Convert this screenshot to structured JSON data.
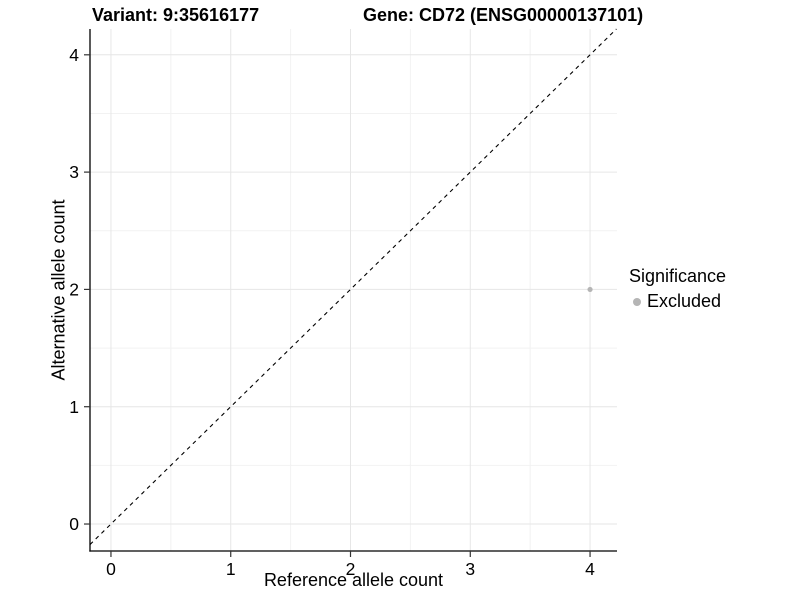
{
  "header": {
    "variant_title": "Variant: 9:35616177",
    "gene_title": "Gene: CD72 (ENSG00000137101)"
  },
  "legend": {
    "title": "Significance",
    "items": [
      {
        "label": "Excluded",
        "color": "#b5b5b5"
      }
    ]
  },
  "chart_data": {
    "type": "scatter",
    "title": "Variant: 9:35616177    Gene: CD72 (ENSG00000137101)",
    "xlabel": "Reference allele count",
    "ylabel": "Alternative allele count",
    "xlim": [
      -0.175,
      4.225
    ],
    "ylim": [
      -0.23,
      4.22
    ],
    "x_ticks": [
      0,
      1,
      2,
      3,
      4
    ],
    "y_ticks": [
      0,
      1,
      2,
      3,
      4
    ],
    "x_minor_ticks": [
      0.5,
      1.5,
      2.5,
      3.5
    ],
    "y_minor_ticks": [
      0.5,
      1.5,
      2.5,
      3.5
    ],
    "grid": "major+minor",
    "legend_position": "right",
    "series": [
      {
        "name": "Excluded",
        "color": "#b5b5b5",
        "points": [
          {
            "x": 4,
            "y": 2
          }
        ]
      }
    ],
    "reference_line": {
      "type": "identity",
      "slope": 1,
      "intercept": 0,
      "style": "dashed",
      "color": "#000000"
    },
    "colors": {
      "grid_major": "#e6e6e6",
      "grid_minor": "#f2f2f2",
      "axis_line": "#000000",
      "tick": "#333333",
      "tick_label": "#000000",
      "background": "#ffffff"
    }
  }
}
